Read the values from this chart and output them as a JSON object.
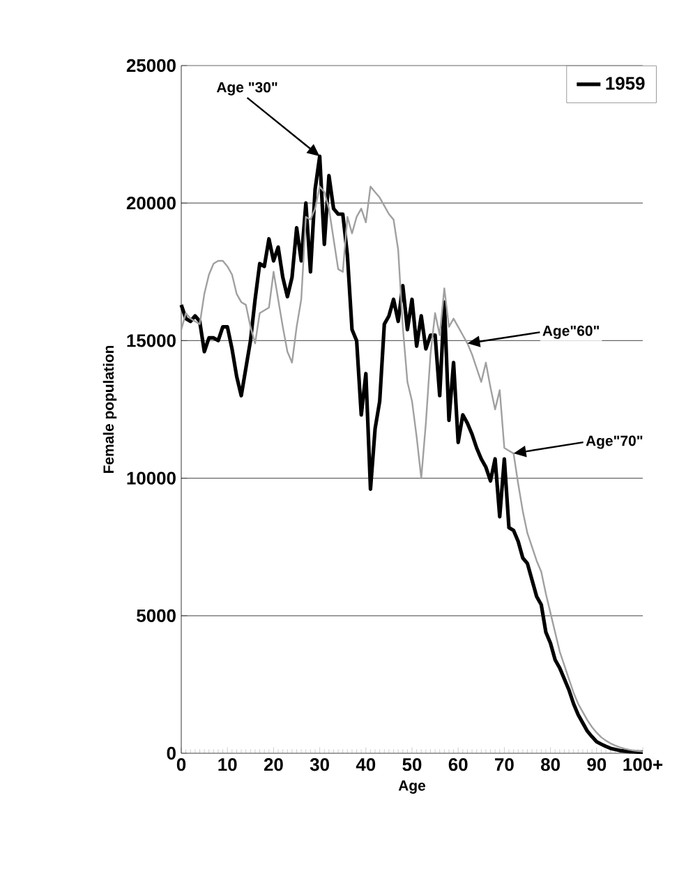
{
  "chart_data": {
    "type": "line",
    "xlabel": "Age",
    "ylabel": "Female population",
    "xlim": [
      0,
      100
    ],
    "ylim": [
      0,
      25000
    ],
    "xticks": [
      0,
      10,
      20,
      30,
      40,
      50,
      60,
      70,
      80,
      90,
      {
        "value": 100,
        "label": "100+"
      }
    ],
    "yticks": [
      0,
      5000,
      10000,
      15000,
      20000,
      25000
    ],
    "grid": "y",
    "legend": "top right",
    "series": [
      {
        "name": "1959",
        "color": "#000000",
        "x": [
          0,
          1,
          2,
          3,
          4,
          5,
          6,
          7,
          8,
          9,
          10,
          11,
          12,
          13,
          14,
          15,
          16,
          17,
          18,
          19,
          20,
          21,
          22,
          23,
          24,
          25,
          26,
          27,
          28,
          29,
          30,
          31,
          32,
          33,
          34,
          35,
          36,
          37,
          38,
          39,
          40,
          41,
          42,
          43,
          44,
          45,
          46,
          47,
          48,
          49,
          50,
          51,
          52,
          53,
          54,
          55,
          56,
          57,
          58,
          59,
          60,
          61,
          62,
          63,
          64,
          65,
          66,
          67,
          68,
          69,
          70,
          71,
          72,
          73,
          74,
          75,
          76,
          77,
          78,
          79,
          80,
          81,
          82,
          83,
          84,
          85,
          86,
          87,
          88,
          89,
          90,
          91,
          92,
          93,
          94,
          95,
          96,
          97,
          98,
          99,
          100
        ],
        "values": [
          16300,
          15800,
          15700,
          15900,
          15700,
          14600,
          15100,
          15100,
          15000,
          15500,
          15500,
          14700,
          13700,
          13000,
          14000,
          15000,
          16500,
          17800,
          17700,
          18700,
          17900,
          18400,
          17300,
          16600,
          17300,
          19100,
          17900,
          20000,
          17500,
          20500,
          21700,
          18500,
          21000,
          19800,
          19600,
          19600,
          18100,
          15400,
          15000,
          12300,
          13800,
          9600,
          11800,
          12800,
          15600,
          15900,
          16500,
          15700,
          17000,
          15400,
          16500,
          14800,
          15900,
          14700,
          15200,
          15200,
          13000,
          16400,
          12100,
          14200,
          11300,
          12300,
          12000,
          11600,
          11100,
          10700,
          10400,
          9900,
          10700,
          8600,
          10700,
          8200,
          8100,
          7700,
          7100,
          6900,
          6300,
          5700,
          5400,
          4400,
          4000,
          3400,
          3100,
          2700,
          2300,
          1800,
          1400,
          1100,
          800,
          600,
          420,
          330,
          250,
          180,
          140,
          100,
          80,
          60,
          50,
          40,
          40
        ]
      },
      {
        "color": "#a0a0a0",
        "x": [
          0,
          1,
          2,
          3,
          4,
          5,
          6,
          7,
          8,
          9,
          10,
          11,
          12,
          13,
          14,
          15,
          16,
          17,
          18,
          19,
          20,
          21,
          22,
          23,
          24,
          25,
          26,
          27,
          28,
          29,
          30,
          31,
          32,
          33,
          34,
          35,
          36,
          37,
          38,
          39,
          40,
          41,
          42,
          43,
          44,
          45,
          46,
          47,
          48,
          49,
          50,
          51,
          52,
          53,
          54,
          55,
          56,
          57,
          58,
          59,
          60,
          61,
          62,
          63,
          64,
          65,
          66,
          67,
          68,
          69,
          70,
          71,
          72,
          73,
          74,
          75,
          76,
          77,
          78,
          79,
          80,
          81,
          82,
          83,
          84,
          85,
          86,
          87,
          88,
          89,
          90,
          91,
          92,
          93,
          94,
          95,
          96,
          97,
          98,
          99,
          100
        ],
        "values": [
          15400,
          16000,
          15800,
          15700,
          15600,
          16700,
          17400,
          17800,
          17900,
          17900,
          17700,
          17400,
          16700,
          16400,
          16300,
          15500,
          14900,
          16000,
          16100,
          16200,
          17500,
          16500,
          15500,
          14600,
          14200,
          15500,
          16500,
          19500,
          19400,
          19800,
          20600,
          20400,
          19800,
          18700,
          17600,
          17500,
          19500,
          18900,
          19500,
          19800,
          19300,
          20600,
          20400,
          20200,
          19900,
          19600,
          19400,
          18300,
          15500,
          13500,
          12800,
          11500,
          10000,
          12000,
          14500,
          16000,
          15200,
          16900,
          15500,
          15800,
          15500,
          15200,
          14900,
          14500,
          14000,
          13500,
          14200,
          13300,
          12500,
          13200,
          11100,
          11000,
          10900,
          9800,
          8800,
          8000,
          7500,
          7000,
          6600,
          5800,
          5100,
          4400,
          3700,
          3200,
          2700,
          2200,
          1800,
          1500,
          1200,
          950,
          750,
          580,
          460,
          360,
          280,
          220,
          170,
          130,
          100,
          80,
          60
        ]
      }
    ],
    "annotations": [
      {
        "text": "Age \"30\"",
        "x": 30,
        "y": 21700
      },
      {
        "text": "Age\"60\"",
        "x": 62,
        "y": 14900
      },
      {
        "text": "Age\"70\"",
        "x": 72,
        "y": 10900
      }
    ]
  }
}
